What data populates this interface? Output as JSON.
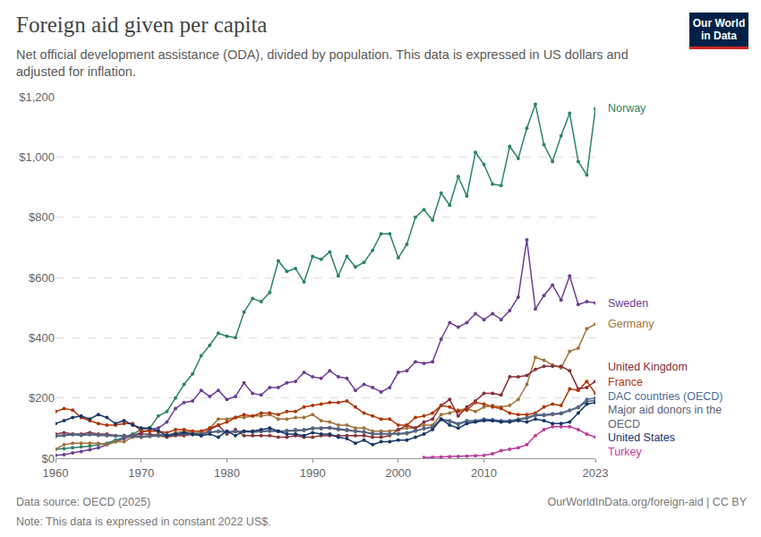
{
  "chart_data": {
    "type": "line",
    "title": "Foreign aid given per capita",
    "subtitle": "Net official development assistance (ODA), divided by population. This data is expressed in US dollars and adjusted for inflation.",
    "source": "Data source: OECD (2025)",
    "credit": "OurWorldInData.org/foreign-aid | CC BY",
    "note": "Note: This data is expressed in constant 2022 US$.",
    "logo": "Our World in Data",
    "grid": true,
    "marker": "circle",
    "line_style": "solid",
    "xlim": [
      1960,
      2023
    ],
    "xticks": [
      1960,
      1970,
      1980,
      1990,
      2000,
      2010,
      2023
    ],
    "ylim": [
      0,
      1200
    ],
    "yticks": [
      {
        "value": 0,
        "label": "$0"
      },
      {
        "value": 200,
        "label": "$200"
      },
      {
        "value": 400,
        "label": "$400"
      },
      {
        "value": 600,
        "label": "$600"
      },
      {
        "value": 800,
        "label": "$800"
      },
      {
        "value": 1000,
        "label": "$1,000"
      },
      {
        "value": 1200,
        "label": "$1,200"
      }
    ],
    "x": [
      1960,
      1961,
      1962,
      1963,
      1964,
      1965,
      1966,
      1967,
      1968,
      1969,
      1970,
      1971,
      1972,
      1973,
      1974,
      1975,
      1976,
      1977,
      1978,
      1979,
      1980,
      1981,
      1982,
      1983,
      1984,
      1985,
      1986,
      1987,
      1988,
      1989,
      1990,
      1991,
      1992,
      1993,
      1994,
      1995,
      1996,
      1997,
      1998,
      1999,
      2000,
      2001,
      2002,
      2003,
      2004,
      2005,
      2006,
      2007,
      2008,
      2009,
      2010,
      2011,
      2012,
      2013,
      2014,
      2015,
      2016,
      2017,
      2018,
      2019,
      2020,
      2021,
      2022,
      2023
    ],
    "series": [
      {
        "name": "Norway",
        "color": "#2c8465",
        "values": [
          30,
          32,
          35,
          38,
          40,
          45,
          50,
          60,
          70,
          80,
          95,
          100,
          140,
          155,
          200,
          245,
          280,
          340,
          375,
          415,
          405,
          400,
          485,
          530,
          520,
          550,
          655,
          620,
          630,
          585,
          670,
          660,
          685,
          605,
          670,
          635,
          650,
          690,
          745,
          745,
          665,
          710,
          800,
          825,
          790,
          880,
          840,
          935,
          870,
          1015,
          975,
          910,
          905,
          1035,
          995,
          1095,
          1175,
          1040,
          985,
          1070,
          1145,
          985,
          940,
          1160
        ]
      },
      {
        "name": "Sweden",
        "color": "#6d3e91",
        "values": [
          10,
          12,
          18,
          22,
          28,
          35,
          45,
          55,
          65,
          75,
          85,
          95,
          100,
          120,
          165,
          185,
          190,
          225,
          205,
          225,
          195,
          205,
          250,
          215,
          210,
          235,
          235,
          250,
          255,
          285,
          270,
          265,
          290,
          270,
          265,
          225,
          245,
          235,
          220,
          235,
          285,
          290,
          320,
          315,
          320,
          395,
          450,
          435,
          450,
          480,
          460,
          480,
          460,
          490,
          535,
          725,
          495,
          540,
          575,
          525,
          605,
          510,
          520,
          515
        ]
      },
      {
        "name": "Germany",
        "color": "#a2733a",
        "values": [
          30,
          45,
          50,
          50,
          50,
          50,
          45,
          55,
          55,
          70,
          70,
          75,
          80,
          75,
          85,
          90,
          85,
          85,
          100,
          130,
          130,
          135,
          135,
          140,
          140,
          145,
          130,
          130,
          135,
          135,
          145,
          125,
          120,
          110,
          110,
          100,
          100,
          90,
          90,
          90,
          95,
          100,
          100,
          110,
          110,
          145,
          150,
          160,
          165,
          155,
          170,
          175,
          170,
          175,
          195,
          245,
          335,
          325,
          310,
          300,
          355,
          365,
          430,
          445
        ]
      },
      {
        "name": "United Kingdom",
        "color": "#883039",
        "values": [
          80,
          85,
          80,
          80,
          85,
          80,
          80,
          75,
          75,
          75,
          80,
          80,
          75,
          70,
          75,
          75,
          80,
          75,
          95,
          110,
          80,
          95,
          75,
          75,
          75,
          75,
          70,
          70,
          75,
          70,
          70,
          75,
          75,
          75,
          75,
          75,
          75,
          70,
          70,
          75,
          95,
          110,
          100,
          120,
          130,
          175,
          195,
          140,
          170,
          190,
          215,
          215,
          210,
          270,
          270,
          275,
          295,
          305,
          305,
          305,
          290,
          230,
          235,
          255
        ]
      },
      {
        "name": "France",
        "color": "#b13507",
        "values": [
          155,
          165,
          160,
          135,
          125,
          115,
          110,
          110,
          115,
          115,
          90,
          90,
          90,
          85,
          95,
          95,
          90,
          90,
          100,
          110,
          120,
          135,
          145,
          140,
          150,
          150,
          145,
          155,
          155,
          170,
          175,
          180,
          185,
          185,
          190,
          170,
          150,
          140,
          130,
          130,
          110,
          110,
          135,
          140,
          150,
          175,
          170,
          155,
          160,
          185,
          180,
          170,
          165,
          150,
          145,
          145,
          150,
          170,
          180,
          175,
          230,
          225,
          255,
          215
        ]
      },
      {
        "name": "DAC countries (OECD)",
        "color": "#4c6a9c",
        "values": [
          75,
          78,
          80,
          78,
          80,
          78,
          76,
          75,
          76,
          74,
          72,
          74,
          76,
          78,
          80,
          82,
          80,
          82,
          88,
          90,
          88,
          90,
          90,
          88,
          90,
          92,
          90,
          92,
          95,
          95,
          100,
          100,
          102,
          98,
          95,
          90,
          88,
          82,
          82,
          80,
          82,
          85,
          92,
          100,
          105,
          130,
          125,
          115,
          125,
          125,
          130,
          128,
          125,
          125,
          130,
          135,
          145,
          145,
          148,
          150,
          160,
          170,
          195,
          200
        ]
      },
      {
        "name": "Major aid donors in the OECD",
        "color": "#5b6476",
        "values": [
          72,
          75,
          78,
          76,
          78,
          76,
          75,
          74,
          75,
          73,
          70,
          72,
          74,
          75,
          78,
          80,
          78,
          80,
          85,
          88,
          86,
          88,
          88,
          86,
          88,
          90,
          88,
          90,
          92,
          92,
          98,
          98,
          100,
          95,
          92,
          88,
          86,
          80,
          80,
          78,
          80,
          82,
          90,
          98,
          102,
          128,
          122,
          112,
          122,
          122,
          128,
          125,
          122,
          122,
          128,
          132,
          142,
          142,
          145,
          148,
          158,
          168,
          188,
          192
        ]
      },
      {
        "name": "United States",
        "color": "#18366a",
        "values": [
          115,
          125,
          135,
          140,
          130,
          145,
          135,
          115,
          125,
          110,
          100,
          100,
          90,
          75,
          80,
          85,
          80,
          75,
          80,
          70,
          90,
          75,
          90,
          90,
          95,
          100,
          90,
          80,
          80,
          75,
          85,
          80,
          80,
          70,
          65,
          50,
          60,
          45,
          55,
          55,
          60,
          60,
          70,
          80,
          95,
          130,
          110,
          100,
          115,
          120,
          125,
          125,
          120,
          120,
          125,
          120,
          130,
          125,
          115,
          115,
          120,
          150,
          180,
          185
        ]
      },
      {
        "name": "Turkey",
        "color": "#bc3d9b",
        "values": [
          null,
          null,
          null,
          null,
          null,
          null,
          null,
          null,
          null,
          null,
          null,
          null,
          null,
          null,
          null,
          null,
          null,
          null,
          null,
          null,
          null,
          null,
          null,
          null,
          null,
          null,
          null,
          null,
          null,
          null,
          null,
          null,
          null,
          null,
          null,
          null,
          null,
          null,
          null,
          null,
          null,
          null,
          null,
          2,
          3,
          4,
          5,
          6,
          7,
          8,
          10,
          15,
          25,
          30,
          35,
          45,
          75,
          95,
          105,
          105,
          105,
          95,
          80,
          70
        ]
      }
    ]
  }
}
